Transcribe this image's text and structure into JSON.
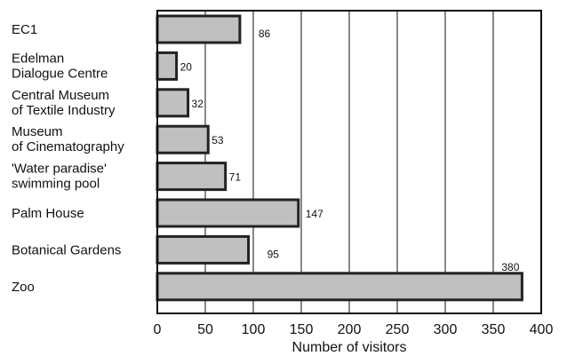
{
  "chart_data": {
    "type": "bar",
    "orientation": "horizontal",
    "categories": [
      [
        "EC1"
      ],
      [
        "Edelman",
        "Dialogue Centre"
      ],
      [
        "Central Museum",
        "of Textile Industry"
      ],
      [
        "Museum",
        "of Cinematography"
      ],
      [
        "'Water paradise'",
        "swimming pool"
      ],
      [
        "Palm House"
      ],
      [
        "Botanical Gardens"
      ],
      [
        "Zoo"
      ]
    ],
    "values": [
      86,
      20,
      32,
      53,
      71,
      147,
      95,
      380
    ],
    "value_labels": [
      "86",
      "20",
      "32",
      "53",
      "71",
      "147",
      "95",
      "380"
    ],
    "xlim": [
      0,
      400
    ],
    "xticks": [
      0,
      50,
      100,
      150,
      200,
      250,
      300,
      350,
      400
    ],
    "xlabel": "Number of visitors",
    "ylabel": "",
    "title": "",
    "grid": "vertical lines",
    "legend": "none",
    "colors": {
      "bar_fill": "#c0c0c0",
      "bar_stroke": "#222222",
      "grid": "#111111"
    }
  }
}
